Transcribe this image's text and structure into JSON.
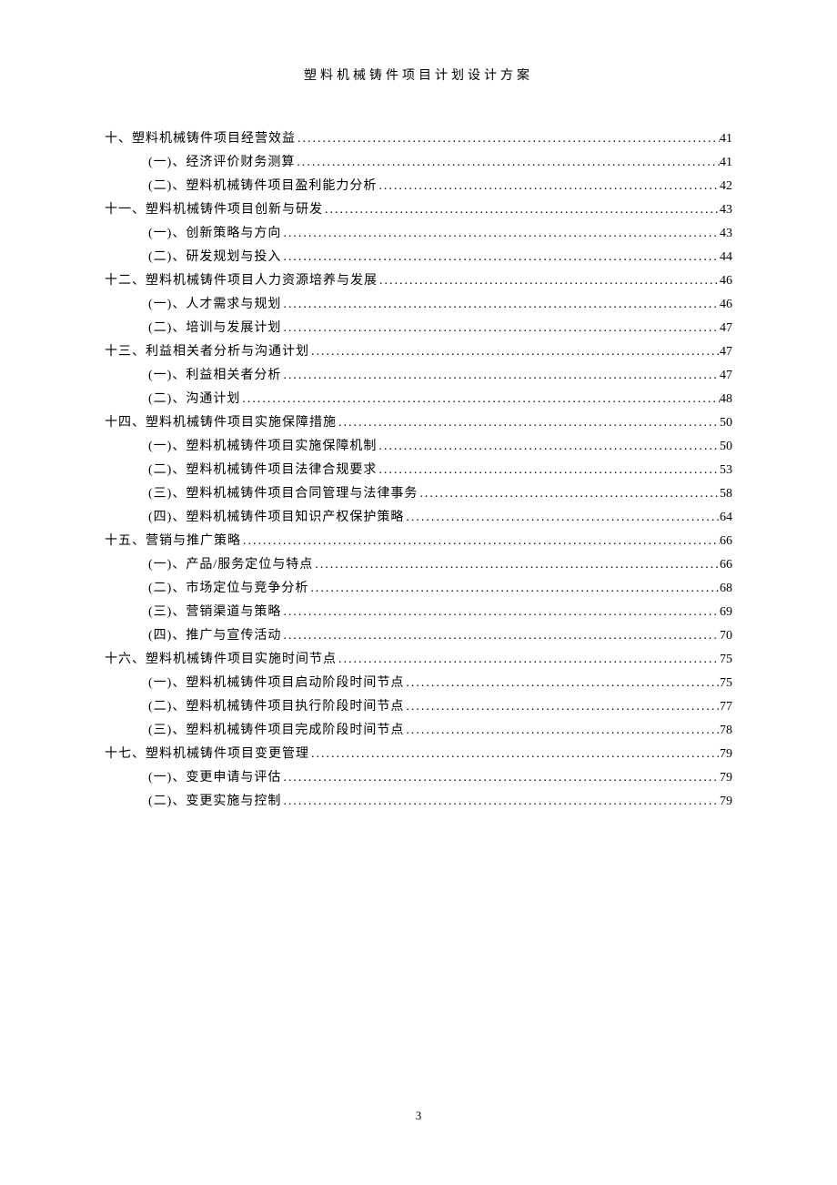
{
  "header": {
    "title": "塑料机械铸件项目计划设计方案"
  },
  "footer": {
    "pageNumber": "3"
  },
  "toc": {
    "entries": [
      {
        "level": 1,
        "title": "十、塑料机械铸件项目经营效益",
        "page": "41"
      },
      {
        "level": 2,
        "title": "(一)、经济评价财务测算",
        "page": "41"
      },
      {
        "level": 2,
        "title": "(二)、塑料机械铸件项目盈利能力分析",
        "page": "42"
      },
      {
        "level": 1,
        "title": "十一、塑料机械铸件项目创新与研发",
        "page": "43"
      },
      {
        "level": 2,
        "title": "(一)、创新策略与方向",
        "page": "43"
      },
      {
        "level": 2,
        "title": "(二)、研发规划与投入",
        "page": "44"
      },
      {
        "level": 1,
        "title": "十二、塑料机械铸件项目人力资源培养与发展",
        "page": "46"
      },
      {
        "level": 2,
        "title": "(一)、人才需求与规划",
        "page": "46"
      },
      {
        "level": 2,
        "title": "(二)、培训与发展计划",
        "page": "47"
      },
      {
        "level": 1,
        "title": "十三、利益相关者分析与沟通计划",
        "page": "47"
      },
      {
        "level": 2,
        "title": "(一)、利益相关者分析",
        "page": "47"
      },
      {
        "level": 2,
        "title": "(二)、沟通计划",
        "page": "48"
      },
      {
        "level": 1,
        "title": "十四、塑料机械铸件项目实施保障措施",
        "page": "50"
      },
      {
        "level": 2,
        "title": "(一)、塑料机械铸件项目实施保障机制",
        "page": "50"
      },
      {
        "level": 2,
        "title": "(二)、塑料机械铸件项目法律合规要求",
        "page": "53"
      },
      {
        "level": 2,
        "title": "(三)、塑料机械铸件项目合同管理与法律事务",
        "page": "58"
      },
      {
        "level": 2,
        "title": "(四)、塑料机械铸件项目知识产权保护策略",
        "page": "64"
      },
      {
        "level": 1,
        "title": "十五、营销与推广策略",
        "page": "66"
      },
      {
        "level": 2,
        "title": "(一)、产品/服务定位与特点",
        "page": "66"
      },
      {
        "level": 2,
        "title": "(二)、市场定位与竞争分析",
        "page": "68"
      },
      {
        "level": 2,
        "title": "(三)、营销渠道与策略",
        "page": "69"
      },
      {
        "level": 2,
        "title": "(四)、推广与宣传活动",
        "page": "70"
      },
      {
        "level": 1,
        "title": "十六、塑料机械铸件项目实施时间节点",
        "page": "75"
      },
      {
        "level": 2,
        "title": "(一)、塑料机械铸件项目启动阶段时间节点",
        "page": "75"
      },
      {
        "level": 2,
        "title": "(二)、塑料机械铸件项目执行阶段时间节点",
        "page": "77"
      },
      {
        "level": 2,
        "title": "(三)、塑料机械铸件项目完成阶段时间节点",
        "page": "78"
      },
      {
        "level": 1,
        "title": "十七、塑料机械铸件项目变更管理",
        "page": "79"
      },
      {
        "level": 2,
        "title": "(一)、变更申请与评估",
        "page": "79"
      },
      {
        "level": 2,
        "title": "(二)、变更实施与控制",
        "page": "79"
      }
    ]
  }
}
